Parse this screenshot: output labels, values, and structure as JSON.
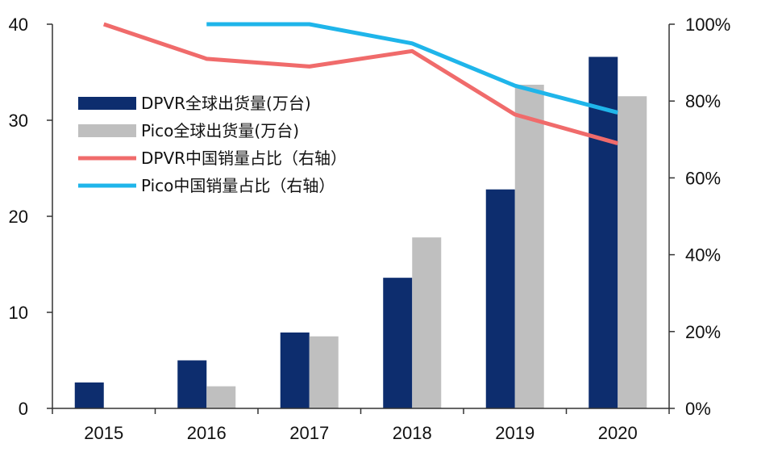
{
  "chart_data": {
    "type": "bar",
    "categories": [
      "2015",
      "2016",
      "2017",
      "2018",
      "2019",
      "2020"
    ],
    "series": [
      {
        "name": "DPVR全球出货量(万台)",
        "kind": "bar",
        "axis": "left",
        "color": "#0d2d6e",
        "values": [
          2.7,
          5.0,
          7.9,
          13.6,
          22.8,
          36.6
        ]
      },
      {
        "name": "Pico全球出货量(万台)",
        "kind": "bar",
        "axis": "left",
        "color": "#bfbfbf",
        "values": [
          null,
          2.3,
          7.5,
          17.8,
          33.7,
          32.5
        ]
      },
      {
        "name": "DPVR中国销量占比（右轴）",
        "kind": "line",
        "axis": "right",
        "color": "#f06b6b",
        "values": [
          1.0,
          0.91,
          0.89,
          0.93,
          0.765,
          0.69
        ]
      },
      {
        "name": "Pico中国销量占比（右轴）",
        "kind": "line",
        "axis": "right",
        "color": "#1fb5ea",
        "values": [
          null,
          1.0,
          1.0,
          0.95,
          0.84,
          0.77
        ]
      }
    ],
    "y_left": {
      "min": 0,
      "max": 40,
      "ticks": [
        0,
        10,
        20,
        30,
        40
      ],
      "tick_labels": [
        "0",
        "10",
        "20",
        "30",
        "40"
      ]
    },
    "y_right": {
      "min": 0,
      "max": 1,
      "ticks": [
        0,
        0.2,
        0.4,
        0.6,
        0.8,
        1.0
      ],
      "tick_labels": [
        "0%",
        "20%",
        "40%",
        "60%",
        "80%",
        "100%"
      ]
    },
    "grid": false,
    "legend_position": "upper-left"
  }
}
